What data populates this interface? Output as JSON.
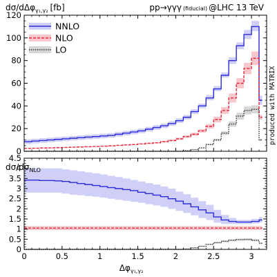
{
  "chart_data": [
    {
      "type": "line",
      "panel": "top",
      "ylabel": {
        "main": "dσ/dΔφ",
        "sub": "γ₁,γ₂",
        "unit": "[fb]"
      },
      "process_label": {
        "main": "pp→γγγ",
        "sub": "(fiducial)",
        "tail": "@LHC 13 TeV"
      },
      "side_label": "produced with MATRIX",
      "xlim": [
        0,
        3.2
      ],
      "ylim": [
        0,
        120
      ],
      "xticks": [
        0,
        0.5,
        1,
        1.5,
        2,
        2.5,
        3
      ],
      "yticks": [
        0,
        20,
        40,
        60,
        80,
        100,
        120
      ],
      "legend_position": "top-left",
      "bin_edges": [
        0,
        0.1,
        0.2,
        0.3,
        0.4,
        0.5,
        0.6,
        0.7,
        0.8,
        0.9,
        1.0,
        1.1,
        1.2,
        1.3,
        1.4,
        1.5,
        1.6,
        1.7,
        1.8,
        1.9,
        2.0,
        2.1,
        2.2,
        2.3,
        2.4,
        2.5,
        2.6,
        2.7,
        2.8,
        2.9,
        3.0,
        3.1,
        3.14159
      ],
      "series": [
        {
          "name": "NNLO",
          "color": "#2b2bd8",
          "band": "#bfbff5",
          "style": "solid",
          "values": [
            8.5,
            9,
            9.5,
            10,
            10.5,
            11,
            11.5,
            12,
            12.5,
            13,
            13.5,
            14,
            15,
            16,
            17,
            18,
            19.5,
            21,
            22.5,
            24.5,
            27,
            30,
            35,
            40,
            47,
            55,
            67,
            80,
            93,
            103,
            110,
            45
          ],
          "lower": [
            6.5,
            7,
            7.5,
            8,
            8.5,
            9,
            9.5,
            10,
            10.5,
            11,
            11.5,
            12,
            13,
            14,
            15,
            16,
            17.5,
            19,
            20.5,
            22.5,
            25,
            28,
            33,
            38,
            45,
            53,
            65,
            77,
            90,
            99,
            106,
            41
          ],
          "upper": [
            10.5,
            11,
            11.5,
            12,
            12.5,
            13,
            13.5,
            14,
            14.5,
            15,
            15.5,
            16,
            17,
            18,
            19,
            20,
            21.5,
            23,
            24.5,
            26.5,
            29,
            32,
            37,
            42,
            49.5,
            57.5,
            69.5,
            83,
            96,
            107,
            115,
            49
          ]
        },
        {
          "name": "NLO",
          "color": "#e8243a",
          "band": "#f5b4ba",
          "style": "dashed",
          "values": [
            2.5,
            2.7,
            2.9,
            3,
            3.2,
            3.4,
            3.6,
            3.8,
            4,
            4.2,
            4.5,
            4.8,
            5.2,
            5.6,
            6,
            6.5,
            7,
            7.5,
            8.5,
            9.5,
            11,
            13,
            15,
            18,
            22,
            28,
            36,
            47,
            60,
            73,
            82,
            30
          ],
          "lower": [
            2.2,
            2.4,
            2.6,
            2.7,
            2.9,
            3.1,
            3.3,
            3.5,
            3.7,
            3.9,
            4.2,
            4.5,
            4.9,
            5.2,
            5.6,
            6,
            6.5,
            7,
            7.8,
            8.7,
            10,
            11.8,
            13.7,
            16.5,
            20,
            25.5,
            33,
            43,
            55.5,
            68,
            76,
            28
          ],
          "upper": [
            2.8,
            3,
            3.2,
            3.3,
            3.5,
            3.7,
            3.9,
            4.1,
            4.3,
            4.5,
            4.8,
            5.1,
            5.5,
            6,
            6.4,
            7,
            7.5,
            8,
            9.2,
            10.3,
            12,
            14.2,
            16.3,
            19.5,
            24,
            30.5,
            39,
            51,
            64.5,
            78,
            88,
            32
          ]
        },
        {
          "name": "LO",
          "color": "#333333",
          "band": "#c8c8c8",
          "style": "dotted",
          "values": [
            0,
            0,
            0,
            0,
            0,
            0,
            0,
            0,
            0,
            0,
            0,
            0,
            0,
            0,
            0,
            0,
            0,
            0,
            0,
            0,
            0,
            0.5,
            1.5,
            3,
            6,
            10,
            16,
            24,
            31,
            36,
            37,
            10
          ],
          "lower": [
            0,
            0,
            0,
            0,
            0,
            0,
            0,
            0,
            0,
            0,
            0,
            0,
            0,
            0,
            0,
            0,
            0,
            0,
            0,
            0,
            0,
            0.4,
            1.3,
            2.7,
            5.4,
            9,
            14.4,
            21.6,
            28,
            32.5,
            33.5,
            9
          ],
          "upper": [
            0,
            0,
            0,
            0,
            0,
            0,
            0,
            0,
            0,
            0,
            0,
            0,
            0,
            0,
            0,
            0,
            0,
            0,
            0,
            0,
            0,
            0.6,
            1.7,
            3.3,
            6.6,
            11,
            17.6,
            26.4,
            34,
            39.5,
            40.5,
            11
          ]
        }
      ]
    },
    {
      "type": "line",
      "panel": "bottom",
      "ylabel": {
        "main": "dσ/dσ",
        "sub": "NLO"
      },
      "xlabel": {
        "main": "Δφ",
        "sub": "γ₁,γ₂"
      },
      "xlim": [
        0,
        3.2
      ],
      "ylim": [
        0,
        4.5
      ],
      "xticks": [
        0,
        0.5,
        1,
        1.5,
        2,
        2.5,
        3
      ],
      "yticks": [
        0,
        0.5,
        1,
        1.5,
        2,
        2.5,
        3,
        3.5,
        4,
        4.5
      ],
      "bin_edges": [
        0,
        0.1,
        0.2,
        0.3,
        0.4,
        0.5,
        0.6,
        0.7,
        0.8,
        0.9,
        1.0,
        1.1,
        1.2,
        1.3,
        1.4,
        1.5,
        1.6,
        1.7,
        1.8,
        1.9,
        2.0,
        2.1,
        2.2,
        2.3,
        2.4,
        2.5,
        2.6,
        2.7,
        2.8,
        2.9,
        3.0,
        3.1,
        3.14159
      ],
      "series": [
        {
          "name": "NNLO",
          "color": "#2b2bd8",
          "band": "#bfbff5",
          "style": "solid",
          "values": [
            3.42,
            3.42,
            3.4,
            3.4,
            3.38,
            3.35,
            3.3,
            3.25,
            3.2,
            3.15,
            3.1,
            3.05,
            3.0,
            2.95,
            2.9,
            2.82,
            2.75,
            2.68,
            2.6,
            2.5,
            2.38,
            2.25,
            2.1,
            1.95,
            1.8,
            1.6,
            1.45,
            1.38,
            1.35,
            1.35,
            1.38,
            1.45
          ],
          "lower": [
            2.8,
            2.8,
            2.8,
            2.8,
            2.8,
            2.75,
            2.7,
            2.67,
            2.63,
            2.6,
            2.55,
            2.5,
            2.45,
            2.4,
            2.35,
            2.3,
            2.23,
            2.17,
            2.1,
            2.0,
            1.9,
            1.8,
            1.68,
            1.55,
            1.45,
            1.32,
            1.25,
            1.25,
            1.25,
            1.25,
            1.28,
            1.32
          ],
          "upper": [
            4.0,
            4.0,
            4.0,
            4.0,
            4.0,
            3.95,
            3.9,
            3.85,
            3.8,
            3.75,
            3.7,
            3.63,
            3.57,
            3.5,
            3.43,
            3.35,
            3.27,
            3.2,
            3.1,
            3.0,
            2.85,
            2.72,
            2.55,
            2.38,
            2.2,
            1.95,
            1.7,
            1.55,
            1.45,
            1.45,
            1.5,
            1.6
          ]
        },
        {
          "name": "NLO",
          "color": "#e8243a",
          "band": "#f5b4ba",
          "style": "dashed",
          "values": [
            1.05,
            1.05,
            1.05,
            1.05,
            1.05,
            1.05,
            1.05,
            1.05,
            1.05,
            1.05,
            1.05,
            1.05,
            1.05,
            1.05,
            1.05,
            1.05,
            1.05,
            1.05,
            1.05,
            1.05,
            1.05,
            1.05,
            1.05,
            1.05,
            1.05,
            1.05,
            1.05,
            1.05,
            1.05,
            1.05,
            1.05,
            1.05
          ],
          "lower": [
            0.95,
            0.95,
            0.95,
            0.95,
            0.95,
            0.95,
            0.95,
            0.95,
            0.95,
            0.95,
            0.95,
            0.95,
            0.95,
            0.95,
            0.95,
            0.95,
            0.95,
            0.95,
            0.95,
            0.95,
            0.95,
            0.95,
            0.95,
            0.95,
            0.95,
            0.95,
            0.95,
            0.95,
            0.95,
            0.95,
            0.95,
            0.95
          ],
          "upper": [
            1.15,
            1.15,
            1.15,
            1.15,
            1.15,
            1.15,
            1.15,
            1.15,
            1.15,
            1.15,
            1.15,
            1.15,
            1.15,
            1.15,
            1.15,
            1.15,
            1.15,
            1.15,
            1.15,
            1.15,
            1.15,
            1.15,
            1.15,
            1.15,
            1.15,
            1.15,
            1.15,
            1.15,
            1.15,
            1.15,
            1.15,
            1.15
          ]
        },
        {
          "name": "LO",
          "color": "#333333",
          "band": "#c8c8c8",
          "style": "dotted",
          "values": [
            0,
            0,
            0,
            0,
            0,
            0,
            0,
            0,
            0,
            0,
            0,
            0,
            0,
            0,
            0,
            0,
            0,
            0,
            0,
            0,
            0,
            0.02,
            0.08,
            0.15,
            0.25,
            0.33,
            0.4,
            0.45,
            0.48,
            0.49,
            0.45,
            0.3
          ],
          "lower": [
            0,
            0,
            0,
            0,
            0,
            0,
            0,
            0,
            0,
            0,
            0,
            0,
            0,
            0,
            0,
            0,
            0,
            0,
            0,
            0,
            0,
            0.015,
            0.07,
            0.13,
            0.22,
            0.29,
            0.35,
            0.4,
            0.43,
            0.44,
            0.4,
            0.27
          ],
          "upper": [
            0,
            0,
            0,
            0,
            0,
            0,
            0,
            0,
            0,
            0,
            0,
            0,
            0,
            0,
            0,
            0,
            0,
            0,
            0,
            0,
            0,
            0.025,
            0.09,
            0.17,
            0.28,
            0.37,
            0.45,
            0.5,
            0.53,
            0.54,
            0.5,
            0.33
          ]
        }
      ]
    }
  ]
}
